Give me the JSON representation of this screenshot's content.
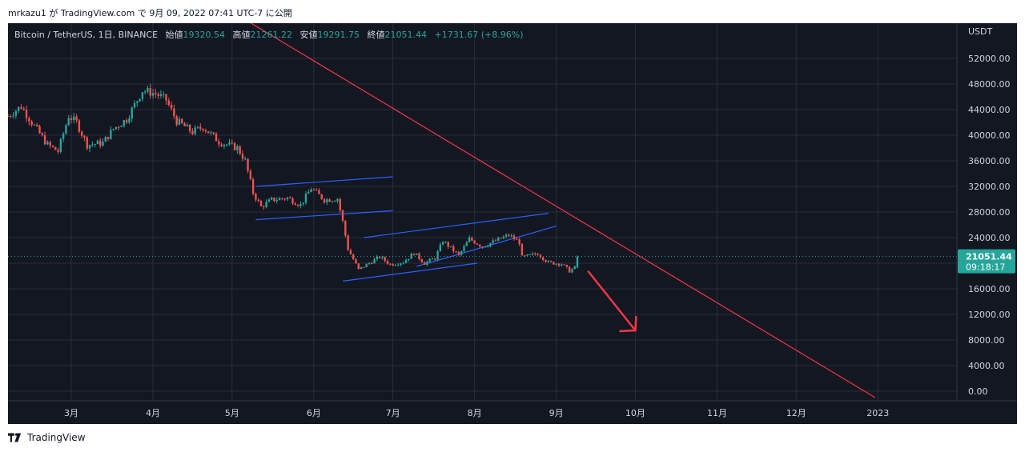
{
  "attribution": "mrkazu1 が TradingView.com で 9月 09, 2022 07:41 UTC-7 に公開",
  "footer_brand": "TradingView",
  "legend": {
    "symbol": "Bitcoin / TetherUS, 1日, BINANCE",
    "open_label": "始値",
    "open": "19320.54",
    "high_label": "高値",
    "high": "21261.22",
    "low_label": "安値",
    "low": "19291.75",
    "close_label": "終値",
    "close": "21051.44",
    "change": "+1731.67 (+8.96%)"
  },
  "colors": {
    "background": "#131722",
    "up": "#26a69a",
    "down": "#ef5350",
    "trend_red": "#f23645",
    "channel_blue": "#2962ff",
    "grid": "#2a2e39",
    "axis_text": "#d1d4dc"
  },
  "chart_data": {
    "type": "candlestick",
    "y_axis_label": "USDT",
    "ylim": [
      -1500,
      57500
    ],
    "y_ticks": [
      "52000.00",
      "48000.00",
      "44000.00",
      "40000.00",
      "36000.00",
      "32000.00",
      "28000.00",
      "24000.00",
      "20000.00",
      "16000.00",
      "12000.00",
      "8000.00",
      "4000.00",
      "0.00"
    ],
    "x_start": "2022-02-05",
    "x_end": "2023-01-31",
    "x_ticks": [
      {
        "date": "2022-03-01",
        "label": "3月"
      },
      {
        "date": "2022-04-01",
        "label": "4月"
      },
      {
        "date": "2022-05-01",
        "label": "5月"
      },
      {
        "date": "2022-06-01",
        "label": "6月"
      },
      {
        "date": "2022-07-01",
        "label": "7月"
      },
      {
        "date": "2022-08-01",
        "label": "8月"
      },
      {
        "date": "2022-09-01",
        "label": "9月"
      },
      {
        "date": "2022-10-01",
        "label": "10月"
      },
      {
        "date": "2022-11-01",
        "label": "11月"
      },
      {
        "date": "2022-12-01",
        "label": "12月"
      },
      {
        "date": "2023-01-01",
        "label": "2023"
      }
    ],
    "price_path": [
      {
        "date": "2022-02-05",
        "close": 43000
      },
      {
        "date": "2022-02-10",
        "close": 44500
      },
      {
        "date": "2022-02-14",
        "close": 42000
      },
      {
        "date": "2022-02-20",
        "close": 38500
      },
      {
        "date": "2022-02-24",
        "close": 37500
      },
      {
        "date": "2022-02-28",
        "close": 43000
      },
      {
        "date": "2022-03-03",
        "close": 42000
      },
      {
        "date": "2022-03-07",
        "close": 38500
      },
      {
        "date": "2022-03-13",
        "close": 38800
      },
      {
        "date": "2022-03-17",
        "close": 41000
      },
      {
        "date": "2022-03-22",
        "close": 42500
      },
      {
        "date": "2022-03-28",
        "close": 47000
      },
      {
        "date": "2022-04-02",
        "close": 46500
      },
      {
        "date": "2022-04-06",
        "close": 45500
      },
      {
        "date": "2022-04-10",
        "close": 42200
      },
      {
        "date": "2022-04-16",
        "close": 40500
      },
      {
        "date": "2022-04-20",
        "close": 41300
      },
      {
        "date": "2022-04-26",
        "close": 39000
      },
      {
        "date": "2022-04-30",
        "close": 38400
      },
      {
        "date": "2022-05-03",
        "close": 38000
      },
      {
        "date": "2022-05-06",
        "close": 36000
      },
      {
        "date": "2022-05-09",
        "close": 31000
      },
      {
        "date": "2022-05-12",
        "close": 28800
      },
      {
        "date": "2022-05-16",
        "close": 29900
      },
      {
        "date": "2022-05-22",
        "close": 30200
      },
      {
        "date": "2022-05-27",
        "close": 29100
      },
      {
        "date": "2022-05-31",
        "close": 31700
      },
      {
        "date": "2022-06-05",
        "close": 29900
      },
      {
        "date": "2022-06-10",
        "close": 30100
      },
      {
        "date": "2022-06-12",
        "close": 26500
      },
      {
        "date": "2022-06-14",
        "close": 22200
      },
      {
        "date": "2022-06-18",
        "close": 19000
      },
      {
        "date": "2022-06-22",
        "close": 20000
      },
      {
        "date": "2022-06-26",
        "close": 21000
      },
      {
        "date": "2022-06-30",
        "close": 19800
      },
      {
        "date": "2022-07-05",
        "close": 20200
      },
      {
        "date": "2022-07-09",
        "close": 21600
      },
      {
        "date": "2022-07-13",
        "close": 20000
      },
      {
        "date": "2022-07-17",
        "close": 20800
      },
      {
        "date": "2022-07-20",
        "close": 23500
      },
      {
        "date": "2022-07-26",
        "close": 21200
      },
      {
        "date": "2022-07-30",
        "close": 23800
      },
      {
        "date": "2022-08-04",
        "close": 22600
      },
      {
        "date": "2022-08-10",
        "close": 23700
      },
      {
        "date": "2022-08-14",
        "close": 24400
      },
      {
        "date": "2022-08-18",
        "close": 23300
      },
      {
        "date": "2022-08-19",
        "close": 20900
      },
      {
        "date": "2022-08-25",
        "close": 21500
      },
      {
        "date": "2022-08-29",
        "close": 20100
      },
      {
        "date": "2022-09-03",
        "close": 19900
      },
      {
        "date": "2022-09-06",
        "close": 18800
      },
      {
        "date": "2022-09-08",
        "close": 19300
      },
      {
        "date": "2022-09-09",
        "close": 21051.44
      }
    ],
    "last_price_label": "21051.44",
    "countdown_label": "09:18:17",
    "trend_lines": [
      {
        "name": "resistance",
        "color": "red",
        "from": {
          "date": "2022-04-20",
          "price": 62000
        },
        "to": {
          "date": "2022-12-31",
          "price": -1000
        }
      },
      {
        "name": "may-channel-top",
        "color": "blue",
        "from": {
          "date": "2022-05-10",
          "price": 32000
        },
        "to": {
          "date": "2022-07-01",
          "price": 33500
        }
      },
      {
        "name": "may-channel-bottom",
        "color": "blue",
        "from": {
          "date": "2022-05-10",
          "price": 26800
        },
        "to": {
          "date": "2022-07-01",
          "price": 28200
        }
      },
      {
        "name": "summer-channel-top",
        "color": "blue",
        "from": {
          "date": "2022-06-20",
          "price": 24000
        },
        "to": {
          "date": "2022-08-29",
          "price": 27800
        }
      },
      {
        "name": "summer-channel-bottom",
        "color": "blue",
        "from": {
          "date": "2022-06-12",
          "price": 17200
        },
        "to": {
          "date": "2022-08-02",
          "price": 20000
        }
      },
      {
        "name": "summer-channel-mid",
        "color": "blue",
        "from": {
          "date": "2022-07-10",
          "price": 19500
        },
        "to": {
          "date": "2022-09-01",
          "price": 25800
        }
      }
    ],
    "arrow": {
      "from": {
        "date": "2022-09-13",
        "price": 18800
      },
      "to": {
        "date": "2022-10-01",
        "price": 9500
      }
    }
  }
}
